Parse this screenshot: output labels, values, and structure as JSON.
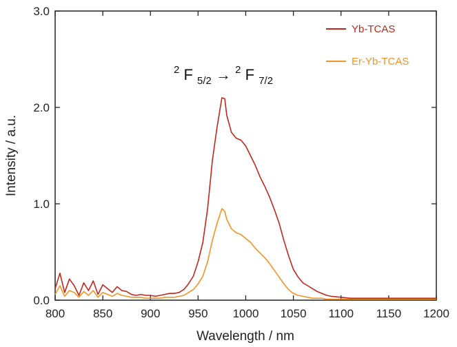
{
  "chart_data": {
    "type": "line",
    "xlabel": "Wavelength / nm",
    "ylabel": "Intensity / a.u.",
    "xlim": [
      800,
      1200
    ],
    "ylim": [
      0,
      3.0
    ],
    "x_ticks": [
      "800",
      "850",
      "900",
      "950",
      "1000",
      "1050",
      "1100",
      "1150",
      "1200"
    ],
    "y_ticks": [
      "0.0",
      "1.0",
      "2.0",
      "3.0"
    ],
    "grid": false,
    "legend_position": "top-right",
    "annotation": {
      "main1": "F",
      "sub1": "5/2",
      "sup1": "2",
      "arrow": "→",
      "main2": "F",
      "sub2": "7/2",
      "sup2": "2"
    },
    "series": [
      {
        "name": "Yb-TCAS",
        "color": "#c1261b",
        "x": [
          800,
          805,
          810,
          815,
          820,
          825,
          830,
          835,
          840,
          845,
          850,
          855,
          860,
          865,
          870,
          875,
          880,
          885,
          890,
          895,
          900,
          905,
          910,
          915,
          920,
          925,
          930,
          935,
          940,
          945,
          950,
          955,
          960,
          965,
          970,
          975,
          978,
          980,
          985,
          990,
          995,
          1000,
          1005,
          1010,
          1015,
          1020,
          1025,
          1030,
          1035,
          1040,
          1045,
          1050,
          1055,
          1060,
          1065,
          1070,
          1075,
          1080,
          1085,
          1090,
          1100,
          1110,
          1120,
          1130,
          1140,
          1150,
          1160,
          1170,
          1180,
          1190,
          1200
        ],
        "y": [
          0.12,
          0.28,
          0.08,
          0.22,
          0.15,
          0.05,
          0.18,
          0.1,
          0.2,
          0.06,
          0.16,
          0.12,
          0.08,
          0.14,
          0.1,
          0.09,
          0.06,
          0.05,
          0.06,
          0.05,
          0.05,
          0.04,
          0.05,
          0.06,
          0.07,
          0.07,
          0.08,
          0.11,
          0.17,
          0.25,
          0.4,
          0.6,
          0.95,
          1.45,
          1.8,
          2.1,
          2.09,
          1.92,
          1.74,
          1.68,
          1.66,
          1.6,
          1.5,
          1.4,
          1.28,
          1.18,
          1.07,
          0.94,
          0.8,
          0.62,
          0.46,
          0.32,
          0.24,
          0.18,
          0.15,
          0.12,
          0.09,
          0.07,
          0.05,
          0.04,
          0.03,
          0.02,
          0.02,
          0.02,
          0.02,
          0.02,
          0.02,
          0.02,
          0.02,
          0.02,
          0.02
        ]
      },
      {
        "name": "Er-Yb-TCAS",
        "color": "#f39322",
        "x": [
          800,
          805,
          810,
          815,
          820,
          825,
          830,
          835,
          840,
          845,
          850,
          855,
          860,
          865,
          870,
          875,
          880,
          885,
          890,
          895,
          900,
          905,
          910,
          915,
          920,
          925,
          930,
          935,
          940,
          945,
          950,
          955,
          960,
          965,
          970,
          975,
          978,
          980,
          985,
          990,
          995,
          1000,
          1005,
          1010,
          1015,
          1020,
          1025,
          1030,
          1035,
          1040,
          1045,
          1050,
          1055,
          1060,
          1065,
          1070,
          1075,
          1080,
          1085,
          1090,
          1100,
          1110,
          1120,
          1130,
          1140,
          1150,
          1160,
          1170,
          1180,
          1190,
          1200
        ],
        "y": [
          0.06,
          0.15,
          0.04,
          0.1,
          0.08,
          0.03,
          0.09,
          0.05,
          0.1,
          0.03,
          0.08,
          0.06,
          0.04,
          0.07,
          0.05,
          0.04,
          0.03,
          0.03,
          0.03,
          0.02,
          0.02,
          0.02,
          0.02,
          0.03,
          0.03,
          0.03,
          0.04,
          0.05,
          0.08,
          0.11,
          0.17,
          0.25,
          0.4,
          0.62,
          0.8,
          0.95,
          0.92,
          0.84,
          0.74,
          0.7,
          0.68,
          0.64,
          0.6,
          0.54,
          0.49,
          0.44,
          0.38,
          0.31,
          0.24,
          0.17,
          0.11,
          0.07,
          0.05,
          0.04,
          0.03,
          0.02,
          0.02,
          0.02,
          0.01,
          0.01,
          0.01,
          0.01,
          0.01,
          0.01,
          0.01,
          0.01,
          0.01,
          0.01,
          0.01,
          0.01,
          0.01
        ]
      }
    ]
  }
}
